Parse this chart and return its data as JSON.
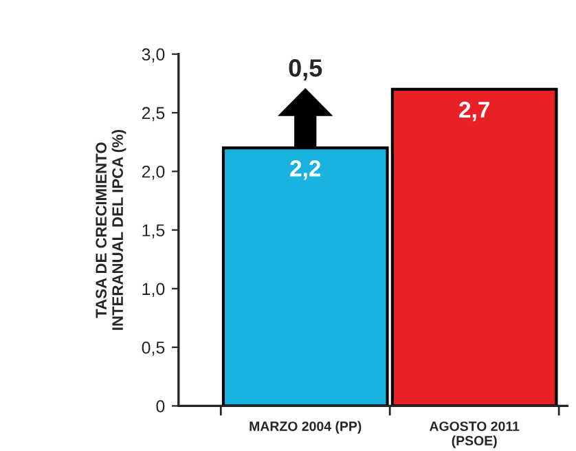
{
  "chart_data": {
    "type": "bar",
    "ylabel": "TASA DE CRECIMIENTO\nINTERANUAL DEL IPCA (%)",
    "categories": [
      "MARZO 2004 (PP)",
      "AGOSTO 2011\n(PSOE)"
    ],
    "values": [
      2.2,
      2.7
    ],
    "colors": [
      "#1ab3e0",
      "#e82127"
    ],
    "value_labels": [
      "2,2",
      "2,7"
    ],
    "ylim": [
      0,
      3.0
    ],
    "yticks": [
      0,
      {
        "value": 0.5,
        "label": "0,5"
      },
      {
        "value": 1.0,
        "label": "1,0"
      },
      {
        "value": 1.5,
        "label": "1,5"
      },
      {
        "value": 2.0,
        "label": "2,0"
      },
      {
        "value": 2.5,
        "label": "2,5"
      },
      {
        "value": 3.0,
        "label": "3,0"
      }
    ],
    "annotations": [
      {
        "text": "0,5",
        "x": "MARZO 2004 (PP)",
        "y": 2.2
      }
    ],
    "grid": false,
    "legend": false
  }
}
